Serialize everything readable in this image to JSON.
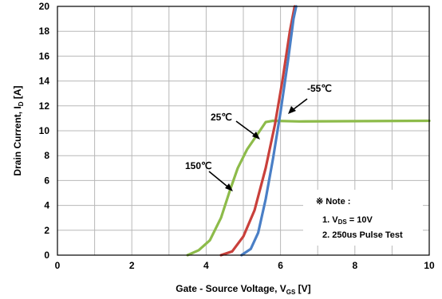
{
  "chart_data": {
    "type": "line",
    "xlabel": "Gate - Source Voltage, V",
    "xlabel_sub": "GS",
    "xlabel_unit": " [V]",
    "ylabel": "Drain Current, I",
    "ylabel_sub": "D",
    "ylabel_unit": " [A]",
    "xlim": [
      0,
      10
    ],
    "ylim": [
      0,
      20
    ],
    "x_ticks": [
      "0",
      "2",
      "4",
      "6",
      "8",
      "10"
    ],
    "y_ticks": [
      "0",
      "2",
      "4",
      "6",
      "8",
      "10",
      "12",
      "14",
      "16",
      "18",
      "20"
    ],
    "grid": true,
    "series": [
      {
        "color": "#8dbb4a",
        "points": [
          [
            3.5,
            0
          ],
          [
            3.8,
            0.4
          ],
          [
            4.1,
            1.2
          ],
          [
            4.4,
            3.0
          ],
          [
            4.65,
            5.3
          ],
          [
            4.85,
            7.0
          ],
          [
            5.1,
            8.5
          ],
          [
            5.4,
            9.8
          ],
          [
            5.6,
            10.7
          ],
          [
            5.8,
            10.8
          ],
          [
            6.5,
            10.75
          ],
          [
            10,
            10.8
          ]
        ]
      },
      {
        "color": "#c9403b",
        "points": [
          [
            4.4,
            0
          ],
          [
            4.7,
            0.3
          ],
          [
            5.0,
            1.5
          ],
          [
            5.3,
            3.6
          ],
          [
            5.6,
            7.0
          ],
          [
            5.85,
            10.5
          ],
          [
            6.05,
            14.0
          ],
          [
            6.25,
            18.0
          ],
          [
            6.38,
            20.0
          ]
        ]
      },
      {
        "color": "#4a7fc6",
        "points": [
          [
            4.95,
            0
          ],
          [
            5.2,
            0.5
          ],
          [
            5.4,
            1.8
          ],
          [
            5.6,
            4.5
          ],
          [
            5.8,
            7.8
          ],
          [
            6.0,
            11.5
          ],
          [
            6.2,
            15.6
          ],
          [
            6.35,
            19.0
          ],
          [
            6.42,
            20.0
          ]
        ]
      }
    ],
    "annotations": [
      {
        "text": "150℃",
        "arrow_to": [
          4.75,
          5.4
        ]
      },
      {
        "text": "25℃",
        "arrow_to": [
          5.7,
          10.2
        ]
      },
      {
        "text": "-55℃",
        "arrow_to": [
          6.1,
          11.5
        ]
      }
    ],
    "note": {
      "title": "※ Note :",
      "line1_prefix": "1. V",
      "line1_sub": "DS",
      "line1_suffix": " = 10V",
      "line2": "2. 250us Pulse Test"
    }
  }
}
